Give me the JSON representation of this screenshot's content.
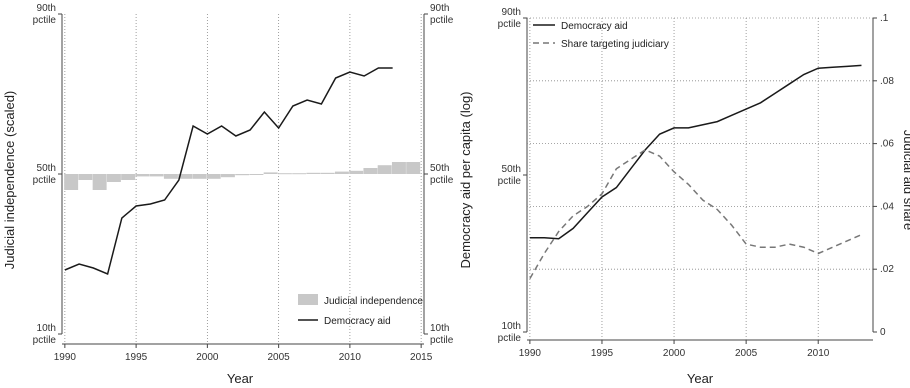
{
  "chart_data": [
    {
      "type": "bar",
      "xlabel": "Year",
      "ylabel_left": "Judicial independence (scaled)",
      "ylabel_right": "Democracy aid per capita (log)",
      "x_ticks": [
        "1990",
        "1995",
        "2000",
        "2005",
        "2010",
        "2015"
      ],
      "xlim": [
        1989.8,
        2015.2
      ],
      "y_ticks_left": [
        {
          "l1": "90th",
          "l2": "pctile",
          "pct": 90
        },
        {
          "l1": "50th",
          "l2": "pctile",
          "pct": 50
        },
        {
          "l1": "10th",
          "l2": "pctile",
          "pct": 10
        }
      ],
      "y_ticks_right": [
        {
          "l1": "90th",
          "l2": "pctile",
          "pct": 90
        },
        {
          "l1": "50th",
          "l2": "pctile",
          "pct": 50
        },
        {
          "l1": "10th",
          "l2": "pctile",
          "pct": 10
        }
      ],
      "grid": "vertical dotted",
      "legend_position": "bottom-right",
      "series": [
        {
          "name": "Judicial independence",
          "kind": "bar",
          "color": "#c8c8c8",
          "baseline_pct": 50,
          "x": [
            1990,
            1991,
            1992,
            1993,
            1994,
            1995,
            1996,
            1997,
            1998,
            1999,
            2000,
            2001,
            2002,
            2003,
            2004,
            2005,
            2006,
            2007,
            2008,
            2009,
            2010,
            2011,
            2012,
            2013,
            2014
          ],
          "values": [
            -4,
            -1.5,
            -4,
            -2,
            -1.5,
            -0.6,
            -0.6,
            -1.2,
            -1.2,
            -1.2,
            -1.2,
            -0.8,
            -0.3,
            -0.1,
            0.4,
            0.2,
            0.2,
            0.3,
            0.3,
            0.6,
            0.8,
            1.5,
            2.2,
            3.0,
            3.0
          ]
        },
        {
          "name": "Democracy aid",
          "kind": "line",
          "color": "#1a1a1a",
          "x": [
            1990,
            1991,
            1992,
            1993,
            1994,
            1995,
            1996,
            1997,
            1998,
            1999,
            2000,
            2001,
            2002,
            2003,
            2004,
            2005,
            2006,
            2007,
            2008,
            2009,
            2010,
            2011,
            2012,
            2013
          ],
          "values": [
            26,
            27.5,
            26.5,
            25,
            39,
            42,
            42.5,
            43.5,
            48.5,
            62,
            60,
            62,
            59.5,
            61,
            65.5,
            61.5,
            67,
            68.5,
            67.5,
            74,
            75.5,
            74.5,
            76.5,
            76.5
          ]
        }
      ]
    },
    {
      "type": "line",
      "xlabel": "Year",
      "ylabel_right": "Judicial aid share",
      "x_ticks": [
        "1990",
        "1995",
        "2000",
        "2005",
        "2010"
      ],
      "xlim": [
        1989.8,
        2013.8
      ],
      "y_ticks_left": [
        {
          "l1": "90th",
          "l2": "pctile",
          "pct": 90
        },
        {
          "l1": "50th",
          "l2": "pctile",
          "pct": 50
        },
        {
          "l1": "10th",
          "l2": "pctile",
          "pct": 10
        }
      ],
      "y_ticks_right": [
        "0",
        ".02",
        ".04",
        ".06",
        ".08",
        ".1"
      ],
      "ylim_right": [
        0,
        0.1
      ],
      "grid": "horizontal and vertical dotted",
      "legend_position": "top-left",
      "series": [
        {
          "name": "Democracy aid",
          "kind": "line",
          "style": "solid",
          "color": "#1a1a1a",
          "axis": "right",
          "x": [
            1990,
            1991,
            1992,
            1993,
            1994,
            1995,
            1996,
            1997,
            1998,
            1999,
            2000,
            2001,
            2002,
            2003,
            2004,
            2005,
            2006,
            2007,
            2008,
            2009,
            2010,
            2011,
            2012,
            2013
          ],
          "values": [
            0.03,
            0.03,
            0.0297,
            0.033,
            0.038,
            0.043,
            0.046,
            0.052,
            0.058,
            0.063,
            0.065,
            0.065,
            0.066,
            0.067,
            0.069,
            0.071,
            0.073,
            0.076,
            0.079,
            0.082,
            0.084,
            0.0843,
            0.0846,
            0.0849
          ]
        },
        {
          "name": "Share targeting judiciary",
          "kind": "line",
          "style": "dashed",
          "color": "#777777",
          "axis": "right",
          "x": [
            1990,
            1991,
            1992,
            1993,
            1994,
            1995,
            1996,
            1997,
            1998,
            1999,
            2000,
            2001,
            2002,
            2003,
            2004,
            2005,
            2006,
            2007,
            2008,
            2009,
            2010,
            2011,
            2012,
            2013
          ],
          "values": [
            0.017,
            0.025,
            0.032,
            0.037,
            0.04,
            0.044,
            0.052,
            0.055,
            0.058,
            0.056,
            0.051,
            0.047,
            0.042,
            0.039,
            0.034,
            0.028,
            0.027,
            0.027,
            0.028,
            0.027,
            0.025,
            0.027,
            0.029,
            0.031
          ]
        }
      ]
    }
  ]
}
